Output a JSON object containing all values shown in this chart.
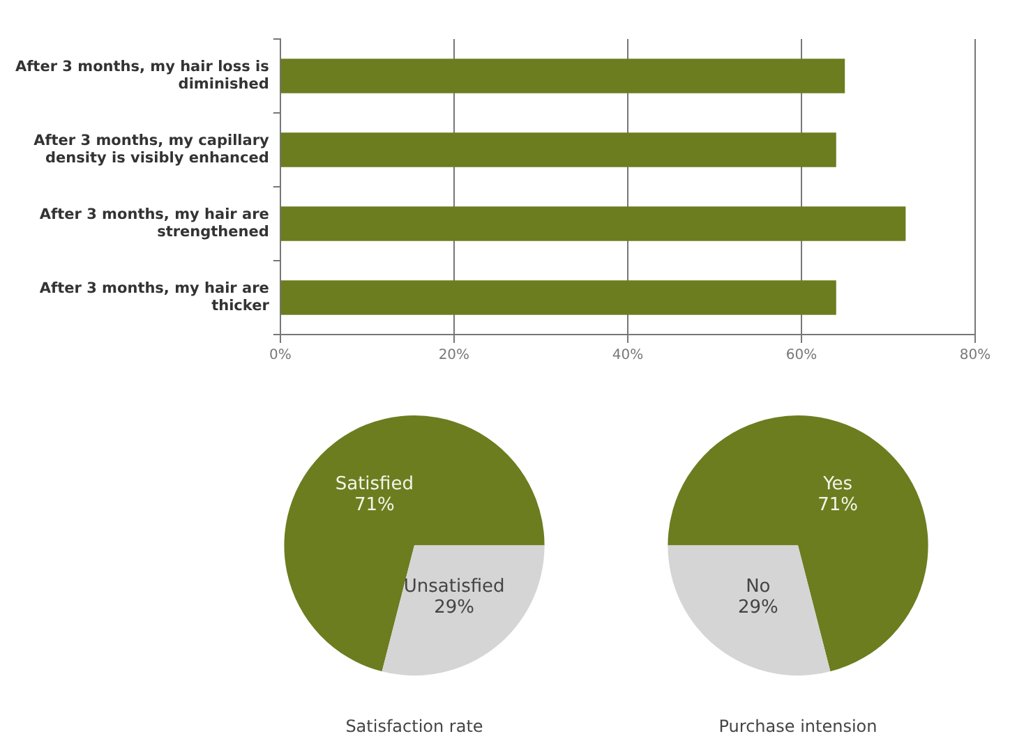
{
  "chart_data": [
    {
      "type": "bar",
      "orientation": "horizontal",
      "categories": [
        "After 3 months, my hair loss is diminished",
        "After 3 months, my capillary density is visibly enhanced",
        "After 3 months, my hair are strengthened",
        "After 3 months, my hair are thicker"
      ],
      "values": [
        65,
        64,
        72,
        64
      ],
      "color": "#6b7d1f",
      "xlim": [
        0,
        80
      ],
      "xticks": [
        {
          "value": 0,
          "label": "0%"
        },
        {
          "value": 20,
          "label": "20%"
        },
        {
          "value": 40,
          "label": "40%"
        },
        {
          "value": 60,
          "label": "60%"
        },
        {
          "value": 80,
          "label": "80%"
        }
      ],
      "grid": "x",
      "legend": false
    },
    {
      "type": "pie",
      "title": "Satisfaction rate",
      "categories": [
        "Satisfied",
        "Unsatisfied"
      ],
      "values": [
        71,
        29
      ],
      "colors": [
        "#6b7d1f",
        "#d5d5d5"
      ],
      "value_labels": [
        "71%",
        "29%"
      ],
      "legend": false
    },
    {
      "type": "pie",
      "title": "Purchase intension",
      "categories": [
        "Yes",
        "No"
      ],
      "values": [
        71,
        29
      ],
      "colors": [
        "#6b7d1f",
        "#d5d5d5"
      ],
      "value_labels": [
        "71%",
        "29%"
      ],
      "legend": false
    }
  ]
}
